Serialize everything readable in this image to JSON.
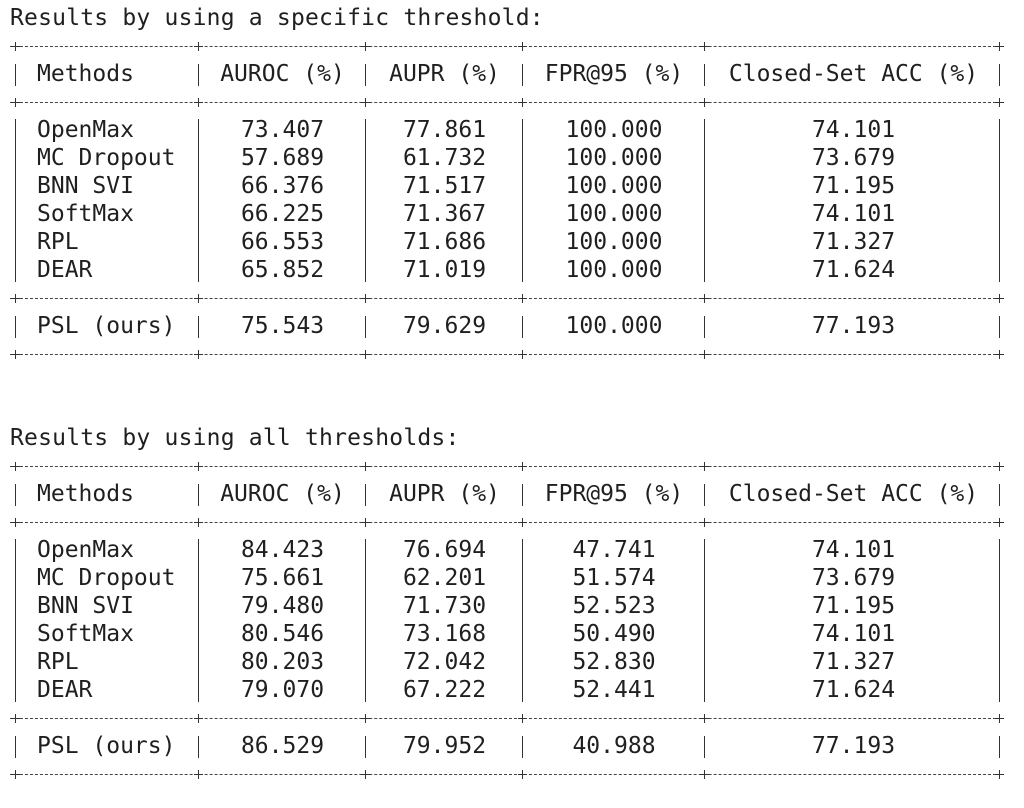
{
  "sections": [
    {
      "heading": "Results by using a specific threshold:",
      "headers": [
        "Methods",
        "AUROC (%)",
        "AUPR (%)",
        "FPR@95 (%)",
        "Closed-Set ACC (%)"
      ],
      "rows": [
        [
          "OpenMax",
          "73.407",
          "77.861",
          "100.000",
          "74.101"
        ],
        [
          "MC Dropout",
          "57.689",
          "61.732",
          "100.000",
          "73.679"
        ],
        [
          "BNN SVI",
          "66.376",
          "71.517",
          "100.000",
          "71.195"
        ],
        [
          "SoftMax",
          "66.225",
          "71.367",
          "100.000",
          "74.101"
        ],
        [
          "RPL",
          "66.553",
          "71.686",
          "100.000",
          "71.327"
        ],
        [
          "DEAR",
          "65.852",
          "71.019",
          "100.000",
          "71.624"
        ]
      ],
      "footer": [
        "PSL (ours)",
        "75.543",
        "79.629",
        "100.000",
        "77.193"
      ]
    },
    {
      "heading": "Results by using all thresholds:",
      "headers": [
        "Methods",
        "AUROC (%)",
        "AUPR (%)",
        "FPR@95 (%)",
        "Closed-Set ACC (%)"
      ],
      "rows": [
        [
          "OpenMax",
          "84.423",
          "76.694",
          "47.741",
          "74.101"
        ],
        [
          "MC Dropout",
          "75.661",
          "62.201",
          "51.574",
          "73.679"
        ],
        [
          "BNN SVI",
          "79.480",
          "71.730",
          "52.523",
          "71.195"
        ],
        [
          "SoftMax",
          "80.546",
          "73.168",
          "50.490",
          "74.101"
        ],
        [
          "RPL",
          "80.203",
          "72.042",
          "52.830",
          "71.327"
        ],
        [
          "DEAR",
          "79.070",
          "67.222",
          "52.441",
          "71.624"
        ]
      ],
      "footer": [
        "PSL (ours)",
        "86.529",
        "79.952",
        "40.988",
        "77.193"
      ]
    }
  ]
}
